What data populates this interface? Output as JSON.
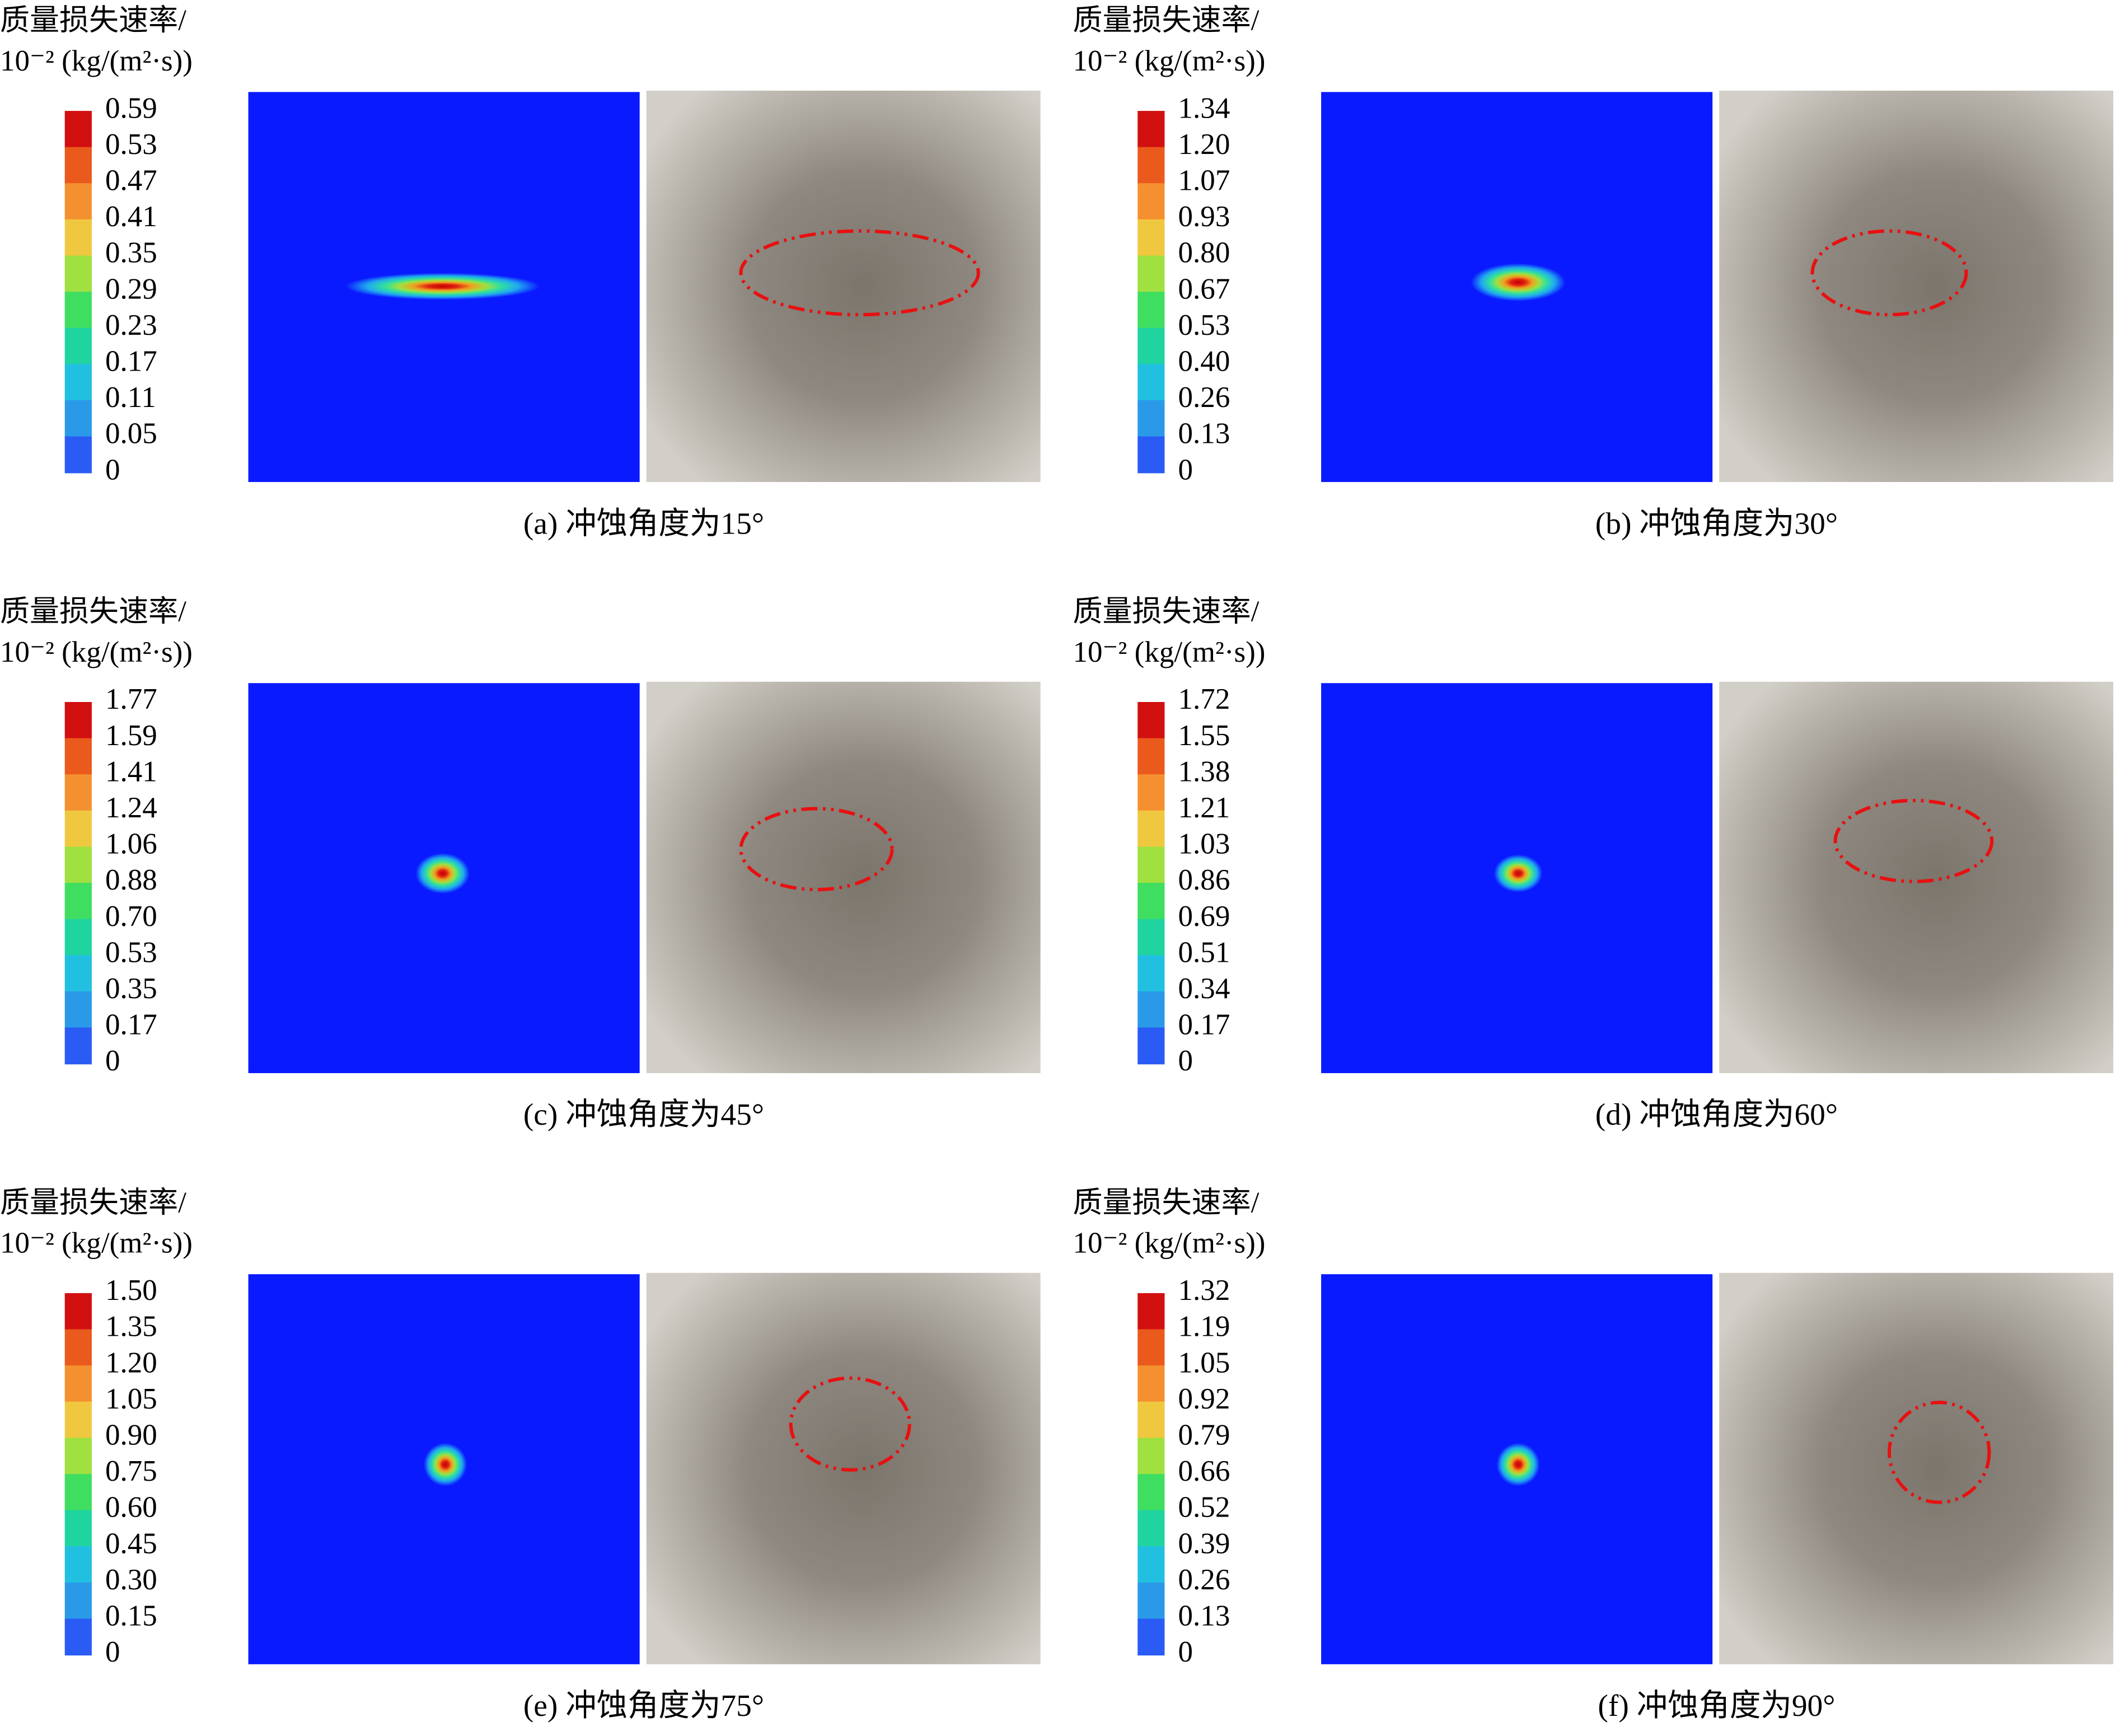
{
  "panels": [
    {
      "title_line1": "质量损失速率/",
      "title_line2": "10⁻² (kg/(m²·s))",
      "colorbar_ticks": [
        "0.59",
        "0.53",
        "0.47",
        "0.41",
        "0.35",
        "0.29",
        "0.23",
        "0.17",
        "0.11",
        "0.05",
        "0"
      ],
      "caption": "(a) 冲蚀角度为15°"
    },
    {
      "title_line1": "质量损失速率/",
      "title_line2": "10⁻² (kg/(m²·s))",
      "colorbar_ticks": [
        "1.34",
        "1.20",
        "1.07",
        "0.93",
        "0.80",
        "0.67",
        "0.53",
        "0.40",
        "0.26",
        "0.13",
        "0"
      ],
      "caption": "(b) 冲蚀角度为30°"
    },
    {
      "title_line1": "质量损失速率/",
      "title_line2": "10⁻² (kg/(m²·s))",
      "colorbar_ticks": [
        "1.77",
        "1.59",
        "1.41",
        "1.24",
        "1.06",
        "0.88",
        "0.70",
        "0.53",
        "0.35",
        "0.17",
        "0"
      ],
      "caption": "(c) 冲蚀角度为45°"
    },
    {
      "title_line1": "质量损失速率/",
      "title_line2": "10⁻² (kg/(m²·s))",
      "colorbar_ticks": [
        "1.72",
        "1.55",
        "1.38",
        "1.21",
        "1.03",
        "0.86",
        "0.69",
        "0.51",
        "0.34",
        "0.17",
        "0"
      ],
      "caption": "(d) 冲蚀角度为60°"
    },
    {
      "title_line1": "质量损失速率/",
      "title_line2": "10⁻² (kg/(m²·s))",
      "colorbar_ticks": [
        "1.50",
        "1.35",
        "1.20",
        "1.05",
        "0.90",
        "0.75",
        "0.60",
        "0.45",
        "0.30",
        "0.15",
        "0"
      ],
      "caption": "(e) 冲蚀角度为75°"
    },
    {
      "title_line1": "质量损失速率/",
      "title_line2": "10⁻² (kg/(m²·s))",
      "colorbar_ticks": [
        "1.32",
        "1.19",
        "1.05",
        "0.92",
        "0.79",
        "0.66",
        "0.52",
        "0.39",
        "0.26",
        "0.13",
        "0"
      ],
      "caption": "(f) 冲蚀角度为90°"
    }
  ]
}
